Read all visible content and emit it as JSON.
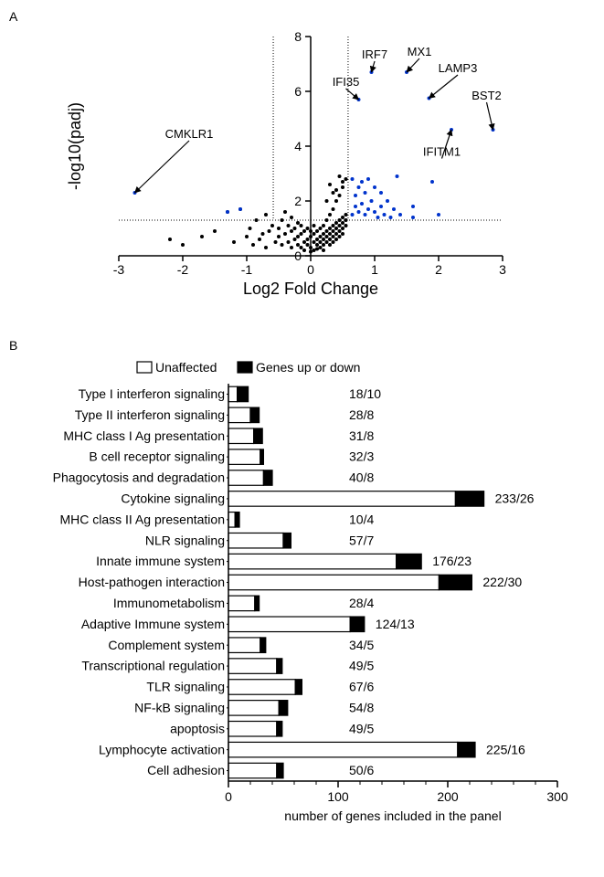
{
  "panelA": {
    "label": "A",
    "type": "scatter",
    "xlabel": "Log2 Fold Change",
    "ylabel": "-log10(padj)",
    "xlim": [
      -3,
      3
    ],
    "ylim": [
      0,
      8
    ],
    "xticks": [
      -3,
      -2,
      -1,
      0,
      1,
      2,
      3
    ],
    "yticks": [
      0,
      2,
      4,
      6,
      8
    ],
    "refline_x": [
      -0.585,
      0.585
    ],
    "refline_y": 1.3,
    "refline_color": "#000000",
    "refline_dash": "1,2",
    "point_radius": 2.0,
    "color_nonsig": "#000000",
    "color_sig": "#0033cc",
    "label_fontsize": 13,
    "axis_fontsize": 18,
    "tick_fontsize": 14,
    "gene_labels": [
      {
        "text": "IRF7",
        "lx": 1.0,
        "ly": 7.2,
        "tx": 0.95,
        "ty": 6.7
      },
      {
        "text": "MX1",
        "lx": 1.7,
        "ly": 7.3,
        "tx": 1.5,
        "ty": 6.7
      },
      {
        "text": "LAMP3",
        "lx": 2.3,
        "ly": 6.7,
        "tx": 1.85,
        "ty": 5.75
      },
      {
        "text": "IFI35",
        "lx": 0.55,
        "ly": 6.2,
        "tx": 0.75,
        "ty": 5.7
      },
      {
        "text": "BST2",
        "lx": 2.75,
        "ly": 5.7,
        "tx": 2.85,
        "ty": 4.6
      },
      {
        "text": "CMKLR1",
        "lx": -1.9,
        "ly": 4.3,
        "tx": -2.75,
        "ty": 2.3
      },
      {
        "text": "IFITM1",
        "lx": 2.05,
        "ly": 3.65,
        "tx": 2.2,
        "ty": 4.6
      }
    ],
    "points_black": [
      [
        -2.2,
        0.6
      ],
      [
        -2.0,
        0.4
      ],
      [
        -1.7,
        0.7
      ],
      [
        -1.5,
        0.9
      ],
      [
        -1.3,
        1.6
      ],
      [
        -1.2,
        0.5
      ],
      [
        -1.1,
        1.7
      ],
      [
        -1.0,
        0.7
      ],
      [
        -0.95,
        1.0
      ],
      [
        -0.9,
        0.4
      ],
      [
        -0.85,
        1.3
      ],
      [
        -0.8,
        0.6
      ],
      [
        -0.75,
        0.8
      ],
      [
        -0.7,
        1.5
      ],
      [
        -0.7,
        0.3
      ],
      [
        -0.65,
        0.9
      ],
      [
        -0.6,
        1.1
      ],
      [
        -0.55,
        0.5
      ],
      [
        -0.5,
        0.7
      ],
      [
        -0.5,
        1.0
      ],
      [
        -0.45,
        1.3
      ],
      [
        -0.45,
        0.4
      ],
      [
        -0.4,
        0.8
      ],
      [
        -0.4,
        1.6
      ],
      [
        -0.35,
        0.5
      ],
      [
        -0.35,
        1.1
      ],
      [
        -0.3,
        0.9
      ],
      [
        -0.3,
        0.3
      ],
      [
        -0.3,
        1.4
      ],
      [
        -0.25,
        0.6
      ],
      [
        -0.25,
        1.0
      ],
      [
        -0.2,
        0.7
      ],
      [
        -0.2,
        0.4
      ],
      [
        -0.2,
        1.2
      ],
      [
        -0.15,
        0.8
      ],
      [
        -0.15,
        0.3
      ],
      [
        -0.15,
        1.1
      ],
      [
        -0.1,
        0.5
      ],
      [
        -0.1,
        0.9
      ],
      [
        -0.1,
        0.2
      ],
      [
        -0.05,
        0.6
      ],
      [
        -0.05,
        0.4
      ],
      [
        -0.05,
        1.0
      ],
      [
        0,
        0.7
      ],
      [
        0,
        0.3
      ],
      [
        0,
        0.9
      ],
      [
        0,
        0.15
      ],
      [
        0.05,
        0.5
      ],
      [
        0.05,
        0.8
      ],
      [
        0.05,
        0.2
      ],
      [
        0.05,
        1.1
      ],
      [
        0.1,
        0.6
      ],
      [
        0.1,
        0.4
      ],
      [
        0.1,
        0.9
      ],
      [
        0.1,
        0.25
      ],
      [
        0.15,
        0.7
      ],
      [
        0.15,
        0.5
      ],
      [
        0.15,
        1.0
      ],
      [
        0.15,
        0.3
      ],
      [
        0.2,
        0.8
      ],
      [
        0.2,
        0.6
      ],
      [
        0.2,
        0.4
      ],
      [
        0.2,
        1.1
      ],
      [
        0.2,
        0.2
      ],
      [
        0.25,
        0.9
      ],
      [
        0.25,
        0.7
      ],
      [
        0.25,
        0.5
      ],
      [
        0.25,
        1.3
      ],
      [
        0.3,
        1.0
      ],
      [
        0.3,
        0.8
      ],
      [
        0.3,
        0.6
      ],
      [
        0.3,
        0.4
      ],
      [
        0.3,
        1.5
      ],
      [
        0.35,
        1.1
      ],
      [
        0.35,
        0.9
      ],
      [
        0.35,
        0.7
      ],
      [
        0.35,
        0.5
      ],
      [
        0.35,
        1.7
      ],
      [
        0.4,
        1.2
      ],
      [
        0.4,
        1.0
      ],
      [
        0.4,
        0.8
      ],
      [
        0.4,
        0.6
      ],
      [
        0.4,
        2.0
      ],
      [
        0.45,
        1.3
      ],
      [
        0.45,
        1.1
      ],
      [
        0.45,
        0.9
      ],
      [
        0.45,
        0.7
      ],
      [
        0.45,
        2.2
      ],
      [
        0.5,
        1.4
      ],
      [
        0.5,
        1.2
      ],
      [
        0.5,
        1.0
      ],
      [
        0.5,
        0.8
      ],
      [
        0.5,
        2.5
      ],
      [
        0.55,
        1.5
      ],
      [
        0.55,
        1.3
      ],
      [
        0.55,
        1.1
      ],
      [
        0.55,
        2.8
      ],
      [
        0.3,
        2.6
      ],
      [
        0.4,
        2.4
      ],
      [
        0.5,
        2.7
      ],
      [
        0.45,
        2.9
      ],
      [
        0.35,
        2.3
      ],
      [
        0.25,
        2.0
      ]
    ],
    "points_blue": [
      [
        -2.75,
        2.3
      ],
      [
        -1.3,
        1.6
      ],
      [
        -1.1,
        1.7
      ],
      [
        0.65,
        1.5
      ],
      [
        0.65,
        2.8
      ],
      [
        0.7,
        1.8
      ],
      [
        0.7,
        2.2
      ],
      [
        0.75,
        1.6
      ],
      [
        0.75,
        2.5
      ],
      [
        0.75,
        5.7
      ],
      [
        0.8,
        1.9
      ],
      [
        0.8,
        2.7
      ],
      [
        0.85,
        1.5
      ],
      [
        0.85,
        2.3
      ],
      [
        0.9,
        1.7
      ],
      [
        0.9,
        2.8
      ],
      [
        0.95,
        2.0
      ],
      [
        0.95,
        6.7
      ],
      [
        1.0,
        1.6
      ],
      [
        1.0,
        2.5
      ],
      [
        1.05,
        1.4
      ],
      [
        1.1,
        1.8
      ],
      [
        1.1,
        2.3
      ],
      [
        1.15,
        1.5
      ],
      [
        1.2,
        2.0
      ],
      [
        1.25,
        1.4
      ],
      [
        1.3,
        1.7
      ],
      [
        1.35,
        2.9
      ],
      [
        1.4,
        1.5
      ],
      [
        1.5,
        6.7
      ],
      [
        1.6,
        1.8
      ],
      [
        1.6,
        1.4
      ],
      [
        1.85,
        5.75
      ],
      [
        1.9,
        2.7
      ],
      [
        2.0,
        1.5
      ],
      [
        2.2,
        4.6
      ],
      [
        2.85,
        4.6
      ]
    ]
  },
  "panelB": {
    "label": "B",
    "type": "barh",
    "xlabel": "number of genes included in the panel",
    "xlim": [
      0,
      300
    ],
    "xticks": [
      0,
      100,
      200,
      300
    ],
    "legend": {
      "unaffected": "Unaffected",
      "up_down": "Genes up or down",
      "unaffected_fill": "#ffffff",
      "up_down_fill": "#000000"
    },
    "bar_border": "#000000",
    "bar_height": 0.72,
    "label_fontsize": 14,
    "axis_fontsize": 14,
    "categories": [
      {
        "name": "Type I interferon signaling",
        "total": 18,
        "changed": 10
      },
      {
        "name": "Type II interferon signaling",
        "total": 28,
        "changed": 8
      },
      {
        "name": "MHC class I Ag presentation",
        "total": 31,
        "changed": 8
      },
      {
        "name": "B cell receptor signaling",
        "total": 32,
        "changed": 3
      },
      {
        "name": "Phagocytosis and degradation",
        "total": 40,
        "changed": 8
      },
      {
        "name": "Cytokine signaling",
        "total": 233,
        "changed": 26
      },
      {
        "name": "MHC class II Ag presentation",
        "total": 10,
        "changed": 4
      },
      {
        "name": "NLR signaling",
        "total": 57,
        "changed": 7
      },
      {
        "name": "Innate immune system",
        "total": 176,
        "changed": 23
      },
      {
        "name": "Host-pathogen interaction",
        "total": 222,
        "changed": 30
      },
      {
        "name": "Immunometabolism",
        "total": 28,
        "changed": 4
      },
      {
        "name": "Adaptive Immune system",
        "total": 124,
        "changed": 13
      },
      {
        "name": "Complement system",
        "total": 34,
        "changed": 5
      },
      {
        "name": "Transcriptional regulation",
        "total": 49,
        "changed": 5
      },
      {
        "name": "TLR signaling",
        "total": 67,
        "changed": 6
      },
      {
        "name": "NF-kB signaling",
        "total": 54,
        "changed": 8
      },
      {
        "name": "apoptosis",
        "total": 49,
        "changed": 5
      },
      {
        "name": "Lymphocyte activation",
        "total": 225,
        "changed": 16
      },
      {
        "name": "Cell adhesion",
        "total": 50,
        "changed": 6
      }
    ]
  }
}
